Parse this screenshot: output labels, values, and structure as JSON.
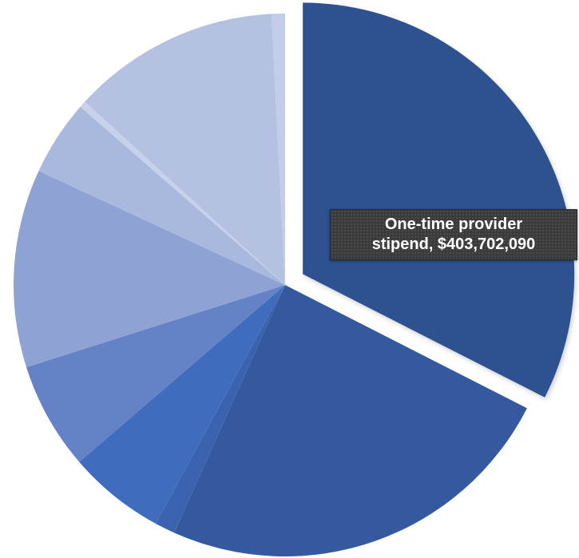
{
  "chart_data": {
    "type": "pie",
    "title": "",
    "legend": "none",
    "slices": [
      {
        "value": 0.325,
        "color": "#2e5190",
        "exploded": true
      },
      {
        "value": 0.242,
        "color": "#34599f",
        "exploded": false
      },
      {
        "value": 0.012,
        "color": "#3b62ae",
        "exploded": false
      },
      {
        "value": 0.058,
        "color": "#3f6cbc",
        "exploded": false
      },
      {
        "value": 0.064,
        "color": "#6582c7",
        "exploded": false
      },
      {
        "value": 0.118,
        "color": "#8ea3d3",
        "exploded": false
      },
      {
        "value": 0.045,
        "color": "#a9b8dd",
        "exploded": false
      },
      {
        "value": 0.004,
        "color": "#c8d1ea",
        "exploded": false
      },
      {
        "value": 0.124,
        "color": "#b4c1e1",
        "exploded": false
      },
      {
        "value": 0.008,
        "color": "#c3cde7",
        "exploded": false
      }
    ],
    "data_label": {
      "line1": "One-time provider",
      "line2": "stipend,  $403,702,090",
      "amount": 403702090
    }
  }
}
